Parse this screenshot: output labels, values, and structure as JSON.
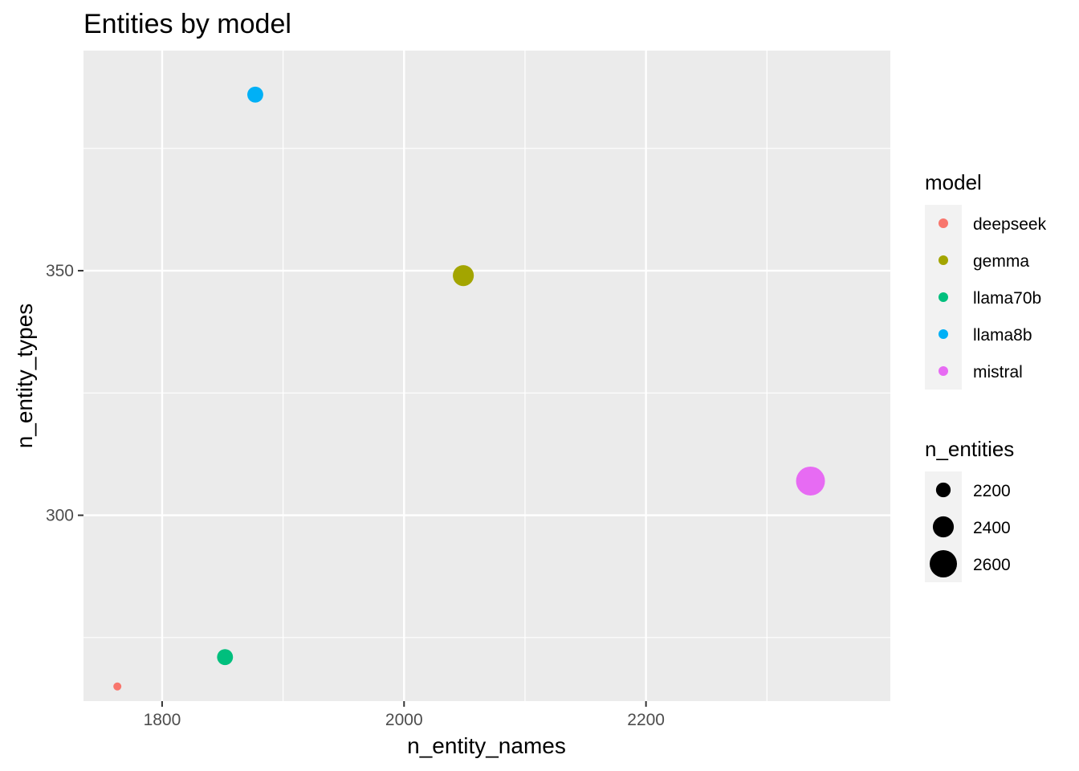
{
  "chart_data": {
    "type": "scatter",
    "title": "Entities by model",
    "xlabel": "n_entity_names",
    "ylabel": "n_entity_types",
    "xlim": [
      1735,
      2402
    ],
    "ylim": [
      262,
      395
    ],
    "x_ticks": [
      1800,
      2000,
      2200
    ],
    "x_minor_ticks": [
      1900,
      2100,
      2300
    ],
    "y_ticks": [
      300,
      350
    ],
    "y_minor_ticks": [
      275,
      325,
      375
    ],
    "grid": true,
    "background": "#ebebeb",
    "series": [
      {
        "name": "deepseek",
        "x": 1763,
        "y": 265,
        "n_entities": 1990,
        "color": "#F8766D"
      },
      {
        "name": "gemma",
        "x": 2049,
        "y": 349,
        "n_entities": 2400,
        "color": "#A3A500"
      },
      {
        "name": "llama70b",
        "x": 1852,
        "y": 271,
        "n_entities": 2240,
        "color": "#00BF7D"
      },
      {
        "name": "llama8b",
        "x": 1877,
        "y": 386,
        "n_entities": 2240,
        "color": "#00B0F6"
      },
      {
        "name": "mistral",
        "x": 2336,
        "y": 307,
        "n_entities": 2650,
        "color": "#E76BF3"
      }
    ],
    "legend": {
      "placement": "right",
      "color_title": "model",
      "size_title": "n_entities",
      "size_breaks": [
        2200,
        2400,
        2600
      ]
    }
  }
}
